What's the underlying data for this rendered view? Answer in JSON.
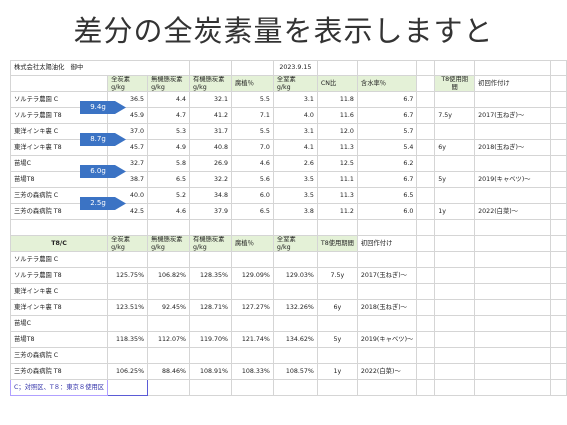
{
  "slide_title": "差分の全炭素量を表示しますと",
  "top_block": {
    "company": "株式会社太陽油化　御中",
    "date": "2023.9.15",
    "headers": [
      "全炭素\ng/kg",
      "無機態炭素\ng/kg",
      "有機態炭素\ng/kg",
      "腐植％",
      "全窒素\ng/kg",
      "CN比",
      "含水率％",
      "",
      "T8使用期\n間",
      "初回作付け"
    ],
    "rows": [
      {
        "name": "ソルテラ農園 C",
        "values": [
          "36.5",
          "4.4",
          "32.1",
          "5.5",
          "3.1",
          "11.8",
          "6.7"
        ],
        "period": "",
        "crop": ""
      },
      {
        "name": "ソルテラ農園 T8",
        "values": [
          "45.9",
          "4.7",
          "41.2",
          "7.1",
          "4.0",
          "11.6",
          "6.7"
        ],
        "period": "7.5y",
        "crop": "2017(玉ねぎ)～"
      },
      {
        "name": "東洋インキ裏 C",
        "values": [
          "37.0",
          "5.3",
          "31.7",
          "5.5",
          "3.1",
          "12.0",
          "5.7"
        ],
        "period": "",
        "crop": ""
      },
      {
        "name": "東洋インキ裏 T8",
        "values": [
          "45.7",
          "4.9",
          "40.8",
          "7.0",
          "4.1",
          "11.3",
          "5.4"
        ],
        "period": "6y",
        "crop": "2018(玉ねぎ)～"
      },
      {
        "name": "苗場C",
        "values": [
          "32.7",
          "5.8",
          "26.9",
          "4.6",
          "2.6",
          "12.5",
          "6.2"
        ],
        "period": "",
        "crop": ""
      },
      {
        "name": "苗場T8",
        "values": [
          "38.7",
          "6.5",
          "32.2",
          "5.6",
          "3.5",
          "11.1",
          "6.7"
        ],
        "period": "5y",
        "crop": "2019(キャベツ)～"
      },
      {
        "name": "三芳の森病院 C",
        "values": [
          "40.0",
          "5.2",
          "34.8",
          "6.0",
          "3.5",
          "11.3",
          "6.5"
        ],
        "period": "",
        "crop": ""
      },
      {
        "name": "三芳の森病院 T8",
        "values": [
          "42.5",
          "4.6",
          "37.9",
          "6.5",
          "3.8",
          "11.2",
          "6.0"
        ],
        "period": "1y",
        "crop": "2022(白菜)～"
      }
    ]
  },
  "arrows": [
    "9.4g",
    "8.7g",
    "6.0g",
    "2.5g"
  ],
  "bottom_block": {
    "title": "T8/C",
    "headers": [
      "全炭素\ng/kg",
      "無機態炭素\ng/kg",
      "有機態炭素\ng/kg",
      "腐植％",
      "全窒素\ng/kg",
      "T8使用期間",
      "初回作付け"
    ],
    "rows": [
      {
        "name": "ソルテラ農園 C",
        "values": [
          "",
          "",
          "",
          "",
          ""
        ],
        "period": "",
        "crop": ""
      },
      {
        "name": "ソルテラ農園 T8",
        "values": [
          "125.75%",
          "106.82%",
          "128.35%",
          "129.09%",
          "129.03%"
        ],
        "period": "7.5y",
        "crop": "2017(玉ねぎ)～"
      },
      {
        "name": "東洋インキ裏 C",
        "values": [
          "",
          "",
          "",
          "",
          ""
        ],
        "period": "",
        "crop": ""
      },
      {
        "name": "東洋インキ裏 T8",
        "values": [
          "123.51%",
          "92.45%",
          "128.71%",
          "127.27%",
          "132.26%"
        ],
        "period": "6y",
        "crop": "2018(玉ねぎ)～"
      },
      {
        "name": "苗場C",
        "values": [
          "",
          "",
          "",
          "",
          ""
        ],
        "period": "",
        "crop": ""
      },
      {
        "name": "苗場T8",
        "values": [
          "118.35%",
          "112.07%",
          "119.70%",
          "121.74%",
          "134.62%"
        ],
        "period": "5y",
        "crop": "2019(キャベツ)～"
      },
      {
        "name": "三芳の森病院 C",
        "values": [
          "",
          "",
          "",
          "",
          ""
        ],
        "period": "",
        "crop": ""
      },
      {
        "name": "三芳の森病院 T8",
        "values": [
          "106.25%",
          "88.46%",
          "108.91%",
          "108.33%",
          "108.57%"
        ],
        "period": "1y",
        "crop": "2022(白菜)～"
      }
    ],
    "note": "C；対照区、T８：東京８使用区"
  },
  "colors": {
    "header_green": "#e4f1d7",
    "arrow_blue": "#3b73c4",
    "grid_line": "#d5d5d5"
  }
}
